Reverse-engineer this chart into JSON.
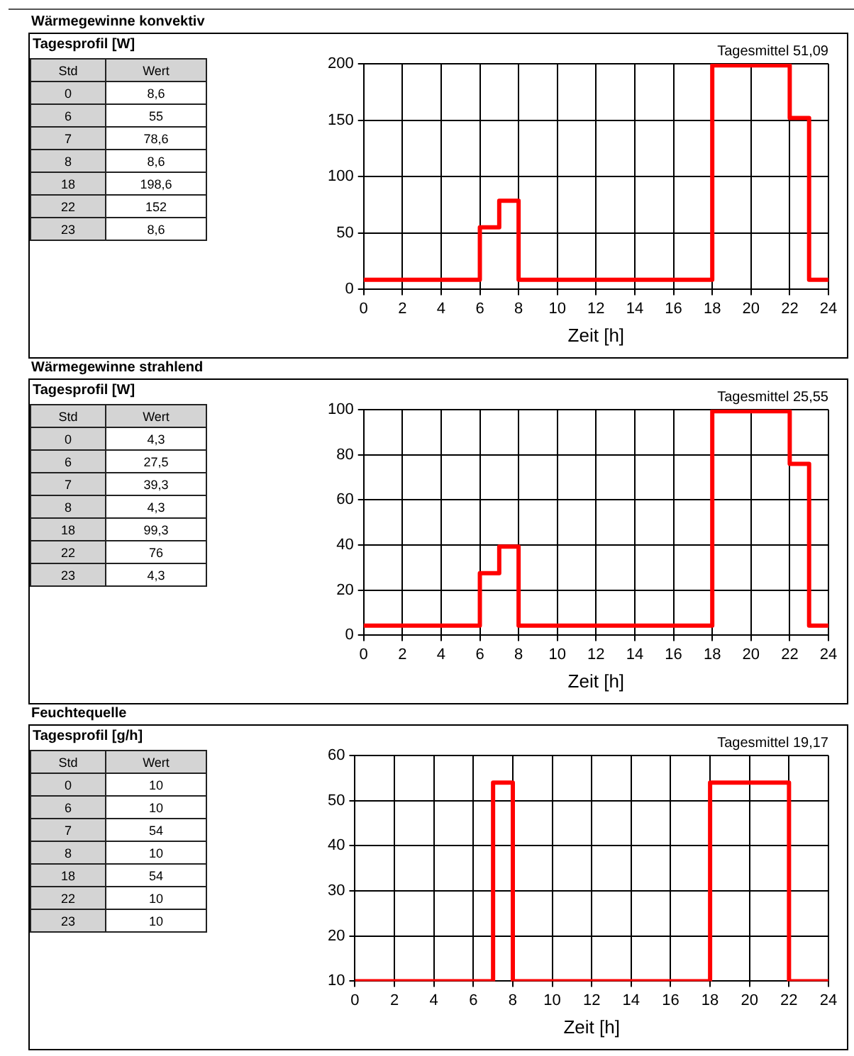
{
  "chart_data": [
    {
      "type": "other",
      "title": "Wärmegewinne konvektiv",
      "subtitle": "Tagesprofil [W]",
      "xlabel": "Std",
      "ylabel": "Wert",
      "categories": [
        "0",
        "6",
        "7",
        "8",
        "18",
        "22",
        "23"
      ],
      "value_labels": [
        "8,6",
        "55",
        "78,6",
        "8,6",
        "198,6",
        "152",
        "8,6"
      ]
    },
    {
      "type": "step",
      "xlabel": "Zeit [h]",
      "annotations": [
        "Tagesmittel 51,09"
      ],
      "x": [
        0,
        6,
        7,
        8,
        18,
        22,
        23,
        24
      ],
      "values": [
        8.6,
        55,
        78.6,
        8.6,
        198.6,
        152,
        8.6,
        8.6
      ],
      "color": "#ff0000",
      "xlim": [
        0,
        24
      ],
      "xticks": [
        0,
        2,
        4,
        6,
        8,
        10,
        12,
        14,
        16,
        18,
        20,
        22,
        24
      ],
      "ylim": [
        0,
        200
      ],
      "yticks": [
        0,
        50,
        100,
        150,
        200
      ],
      "grid": true,
      "marker": "none"
    },
    {
      "type": "other",
      "title": "Wärmegewinne strahlend",
      "subtitle": "Tagesprofil [W]",
      "xlabel": "Std",
      "ylabel": "Wert",
      "categories": [
        "0",
        "6",
        "7",
        "8",
        "18",
        "22",
        "23"
      ],
      "value_labels": [
        "4,3",
        "27,5",
        "39,3",
        "4,3",
        "99,3",
        "76",
        "4,3"
      ]
    },
    {
      "type": "step",
      "xlabel": "Zeit [h]",
      "annotations": [
        "Tagesmittel 25,55"
      ],
      "x": [
        0,
        6,
        7,
        8,
        18,
        22,
        23,
        24
      ],
      "values": [
        4.3,
        27.5,
        39.3,
        4.3,
        99.3,
        76,
        4.3,
        4.3
      ],
      "color": "#ff0000",
      "xlim": [
        0,
        24
      ],
      "xticks": [
        0,
        2,
        4,
        6,
        8,
        10,
        12,
        14,
        16,
        18,
        20,
        22,
        24
      ],
      "ylim": [
        0,
        100
      ],
      "yticks": [
        0,
        20,
        40,
        60,
        80,
        100
      ],
      "grid": true,
      "marker": "none"
    },
    {
      "type": "other",
      "title": "Feuchtequelle",
      "subtitle": "Tagesprofil [g/h]",
      "xlabel": "Std",
      "ylabel": "Wert",
      "categories": [
        "0",
        "6",
        "7",
        "8",
        "18",
        "22",
        "23"
      ],
      "value_labels": [
        "10",
        "10",
        "54",
        "10",
        "54",
        "10",
        "10"
      ]
    },
    {
      "type": "step",
      "xlabel": "Zeit [h]",
      "annotations": [
        "Tagesmittel 19,17"
      ],
      "x": [
        0,
        6,
        7,
        8,
        18,
        22,
        23,
        24
      ],
      "values": [
        10,
        10,
        54,
        10,
        54,
        10,
        10,
        10
      ],
      "color": "#ff0000",
      "xlim": [
        0,
        24
      ],
      "xticks": [
        0,
        2,
        4,
        6,
        8,
        10,
        12,
        14,
        16,
        18,
        20,
        22,
        24
      ],
      "ylim": [
        10,
        60
      ],
      "yticks": [
        10,
        20,
        30,
        40,
        50,
        60
      ],
      "grid": true,
      "marker": "none"
    }
  ]
}
